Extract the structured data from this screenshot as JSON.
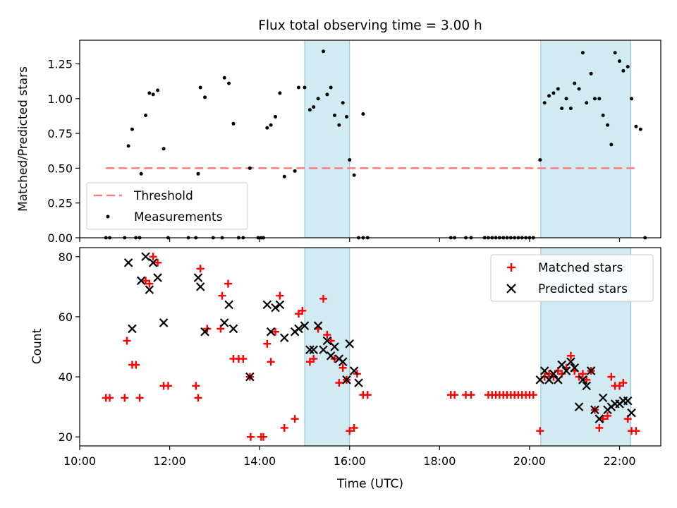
{
  "chart_data": [
    {
      "type": "scatter",
      "title": "Flux total observing time = 3.00 h",
      "xlabel": "",
      "ylabel": "Matched/Predicted stars",
      "xlim": [
        "10:00",
        "22:55"
      ],
      "ylim": [
        0,
        1.42
      ],
      "y_ticks": [
        0.0,
        0.25,
        0.5,
        0.75,
        1.0,
        1.25
      ],
      "y_tick_labels": [
        "0.00",
        "0.25",
        "0.50",
        "0.75",
        "1.00",
        "1.25"
      ],
      "shaded_intervals": [
        [
          "15:00",
          "16:00"
        ],
        [
          "20:15",
          "22:15"
        ]
      ],
      "threshold": {
        "name": "Threshold",
        "value": 0.5,
        "x_range": [
          "10:35",
          "22:20"
        ],
        "color": "#f87f7f"
      },
      "legend": {
        "placement": "lower-left",
        "entries": [
          "Threshold",
          "Measurements"
        ]
      },
      "series": [
        {
          "name": "Measurements",
          "color": "#000000",
          "points": [
            [
              "10:35",
              0
            ],
            [
              "10:40",
              0
            ],
            [
              "11:00",
              0
            ],
            [
              "11:05",
              0.66
            ],
            [
              "11:10",
              0.78
            ],
            [
              "11:15",
              0
            ],
            [
              "11:20",
              0
            ],
            [
              "11:22",
              0.46
            ],
            [
              "11:28",
              0.88
            ],
            [
              "11:33",
              1.04
            ],
            [
              "11:38",
              1.03
            ],
            [
              "11:44",
              1.06
            ],
            [
              "11:52",
              0.64
            ],
            [
              "11:58",
              0
            ],
            [
              "12:25",
              0
            ],
            [
              "12:35",
              0
            ],
            [
              "12:38",
              0.46
            ],
            [
              "12:41",
              1.08
            ],
            [
              "12:47",
              1.01
            ],
            [
              "12:58",
              0
            ],
            [
              "13:10",
              0
            ],
            [
              "13:13",
              1.15
            ],
            [
              "13:19",
              1.11
            ],
            [
              "13:25",
              0.82
            ],
            [
              "13:32",
              0
            ],
            [
              "13:38",
              0
            ],
            [
              "13:47",
              0.5
            ],
            [
              "13:58",
              0
            ],
            [
              "14:02",
              0
            ],
            [
              "14:05",
              0
            ],
            [
              "14:10",
              0.79
            ],
            [
              "14:15",
              0.81
            ],
            [
              "14:21",
              0.87
            ],
            [
              "14:27",
              1.04
            ],
            [
              "14:33",
              0.44
            ],
            [
              "14:47",
              0.48
            ],
            [
              "14:52",
              1.08
            ],
            [
              "15:00",
              1.08
            ],
            [
              "15:07",
              0.92
            ],
            [
              "15:12",
              0.94
            ],
            [
              "15:18",
              1.0
            ],
            [
              "15:25",
              1.34
            ],
            [
              "15:30",
              1.03
            ],
            [
              "15:35",
              1.08
            ],
            [
              "15:40",
              0.88
            ],
            [
              "15:46",
              0.81
            ],
            [
              "15:51",
              0.97
            ],
            [
              "15:56",
              0.87
            ],
            [
              "16:00",
              0.56
            ],
            [
              "16:06",
              0.45
            ],
            [
              "16:12",
              0
            ],
            [
              "16:18",
              0
            ],
            [
              "16:18",
              0.89
            ],
            [
              "16:24",
              0
            ],
            [
              "18:15",
              0
            ],
            [
              "18:20",
              0
            ],
            [
              "18:35",
              0
            ],
            [
              "18:42",
              0
            ],
            [
              "19:00",
              0
            ],
            [
              "19:05",
              0
            ],
            [
              "19:10",
              0
            ],
            [
              "19:15",
              0
            ],
            [
              "19:20",
              0
            ],
            [
              "19:25",
              0
            ],
            [
              "19:30",
              0
            ],
            [
              "19:35",
              0
            ],
            [
              "19:40",
              0
            ],
            [
              "19:45",
              0
            ],
            [
              "19:50",
              0
            ],
            [
              "19:55",
              0
            ],
            [
              "20:00",
              0
            ],
            [
              "20:05",
              0
            ],
            [
              "20:14",
              0.56
            ],
            [
              "20:20",
              0.97
            ],
            [
              "20:26",
              1.02
            ],
            [
              "20:32",
              1.04
            ],
            [
              "20:38",
              1.07
            ],
            [
              "20:43",
              0.93
            ],
            [
              "20:49",
              1.0
            ],
            [
              "20:55",
              0.93
            ],
            [
              "21:00",
              1.11
            ],
            [
              "21:06",
              1.07
            ],
            [
              "21:11",
              1.33
            ],
            [
              "21:16",
              0.97
            ],
            [
              "21:22",
              1.18
            ],
            [
              "21:27",
              1.0
            ],
            [
              "21:33",
              1.0
            ],
            [
              "21:38",
              0.88
            ],
            [
              "21:44",
              0.81
            ],
            [
              "21:49",
              0.67
            ],
            [
              "21:54",
              1.33
            ],
            [
              "22:00",
              1.27
            ],
            [
              "22:05",
              1.2
            ],
            [
              "22:11",
              1.23
            ],
            [
              "22:16",
              1.0
            ],
            [
              "22:22",
              0.8
            ],
            [
              "22:28",
              0.78
            ],
            [
              "22:34",
              0
            ]
          ]
        }
      ]
    },
    {
      "type": "scatter",
      "title": "",
      "xlabel": "Time (UTC)",
      "ylabel": "Count",
      "xlim": [
        "10:00",
        "22:55"
      ],
      "ylim": [
        17,
        83
      ],
      "x_ticks": [
        "10:00",
        "12:00",
        "14:00",
        "16:00",
        "18:00",
        "20:00",
        "22:00"
      ],
      "y_ticks": [
        20,
        40,
        60,
        80
      ],
      "shaded_intervals": [
        [
          "15:00",
          "16:00"
        ],
        [
          "20:15",
          "22:15"
        ]
      ],
      "legend": {
        "placement": "top-right",
        "entries": [
          "Matched stars",
          "Predicted stars"
        ]
      },
      "series": [
        {
          "name": "Matched stars",
          "marker": "plus",
          "color": "#ff0000",
          "points": [
            [
              "10:35",
              33
            ],
            [
              "10:40",
              33
            ],
            [
              "11:00",
              33
            ],
            [
              "11:03",
              52
            ],
            [
              "11:10",
              44
            ],
            [
              "11:15",
              44
            ],
            [
              "11:20",
              33
            ],
            [
              "11:28",
              72
            ],
            [
              "11:33",
              71
            ],
            [
              "11:38",
              80
            ],
            [
              "11:44",
              78
            ],
            [
              "11:52",
              37
            ],
            [
              "11:58",
              37
            ],
            [
              "12:35",
              37
            ],
            [
              "12:38",
              33
            ],
            [
              "12:41",
              76
            ],
            [
              "12:50",
              56
            ],
            [
              "13:08",
              56
            ],
            [
              "13:10",
              67
            ],
            [
              "13:18",
              71
            ],
            [
              "13:25",
              46
            ],
            [
              "13:32",
              46
            ],
            [
              "13:38",
              46
            ],
            [
              "13:47",
              40
            ],
            [
              "13:48",
              20
            ],
            [
              "14:02",
              20
            ],
            [
              "14:05",
              20
            ],
            [
              "14:10",
              51
            ],
            [
              "14:15",
              45
            ],
            [
              "14:21",
              55
            ],
            [
              "14:27",
              67
            ],
            [
              "14:33",
              23
            ],
            [
              "14:47",
              26
            ],
            [
              "14:52",
              61
            ],
            [
              "14:57",
              62
            ],
            [
              "15:07",
              45
            ],
            [
              "15:12",
              46
            ],
            [
              "15:18",
              56
            ],
            [
              "15:25",
              66
            ],
            [
              "15:30",
              54
            ],
            [
              "15:35",
              52
            ],
            [
              "15:40",
              46
            ],
            [
              "15:46",
              38
            ],
            [
              "15:51",
              43
            ],
            [
              "15:56",
              39
            ],
            [
              "16:00",
              22
            ],
            [
              "16:06",
              23
            ],
            [
              "16:10",
              41
            ],
            [
              "16:18",
              34
            ],
            [
              "16:24",
              34
            ],
            [
              "18:15",
              34
            ],
            [
              "18:20",
              34
            ],
            [
              "18:35",
              34
            ],
            [
              "18:42",
              34
            ],
            [
              "19:05",
              34
            ],
            [
              "19:10",
              34
            ],
            [
              "19:15",
              34
            ],
            [
              "19:20",
              34
            ],
            [
              "19:25",
              34
            ],
            [
              "19:30",
              34
            ],
            [
              "19:35",
              34
            ],
            [
              "19:40",
              34
            ],
            [
              "19:45",
              34
            ],
            [
              "19:50",
              34
            ],
            [
              "19:55",
              34
            ],
            [
              "20:00",
              34
            ],
            [
              "20:05",
              34
            ],
            [
              "20:14",
              22
            ],
            [
              "20:20",
              40
            ],
            [
              "20:26",
              41
            ],
            [
              "20:32",
              40
            ],
            [
              "20:38",
              42
            ],
            [
              "20:43",
              41
            ],
            [
              "20:49",
              43
            ],
            [
              "20:55",
              47
            ],
            [
              "21:00",
              42
            ],
            [
              "21:06",
              40
            ],
            [
              "21:11",
              41
            ],
            [
              "21:16",
              39
            ],
            [
              "21:22",
              42
            ],
            [
              "21:27",
              29
            ],
            [
              "21:33",
              23
            ],
            [
              "21:38",
              26
            ],
            [
              "21:44",
              27
            ],
            [
              "21:49",
              40
            ],
            [
              "21:54",
              37
            ],
            [
              "22:00",
              37
            ],
            [
              "22:05",
              38
            ],
            [
              "22:11",
              26
            ],
            [
              "22:16",
              22
            ],
            [
              "22:22",
              22
            ]
          ]
        },
        {
          "name": "Predicted stars",
          "marker": "x",
          "color": "#000000",
          "points": [
            [
              "11:05",
              78
            ],
            [
              "11:10",
              56
            ],
            [
              "11:22",
              72
            ],
            [
              "11:28",
              80
            ],
            [
              "11:33",
              69
            ],
            [
              "11:38",
              78
            ],
            [
              "11:44",
              73
            ],
            [
              "11:52",
              58
            ],
            [
              "12:38",
              73
            ],
            [
              "12:41",
              70
            ],
            [
              "12:47",
              55
            ],
            [
              "13:13",
              58
            ],
            [
              "13:19",
              64
            ],
            [
              "13:25",
              56
            ],
            [
              "13:47",
              40
            ],
            [
              "14:10",
              64
            ],
            [
              "14:15",
              55
            ],
            [
              "14:21",
              63
            ],
            [
              "14:27",
              64
            ],
            [
              "14:33",
              53
            ],
            [
              "14:47",
              55
            ],
            [
              "14:52",
              56
            ],
            [
              "15:00",
              57
            ],
            [
              "15:07",
              49
            ],
            [
              "15:12",
              49
            ],
            [
              "15:18",
              57
            ],
            [
              "15:25",
              49
            ],
            [
              "15:30",
              52
            ],
            [
              "15:35",
              47
            ],
            [
              "15:40",
              50
            ],
            [
              "15:46",
              46
            ],
            [
              "15:51",
              45
            ],
            [
              "15:56",
              39
            ],
            [
              "16:00",
              51
            ],
            [
              "16:06",
              42
            ],
            [
              "16:12",
              38
            ],
            [
              "20:14",
              39
            ],
            [
              "20:20",
              42
            ],
            [
              "20:26",
              39
            ],
            [
              "20:32",
              41
            ],
            [
              "20:38",
              39
            ],
            [
              "20:43",
              44
            ],
            [
              "20:49",
              42
            ],
            [
              "20:55",
              45
            ],
            [
              "21:00",
              43
            ],
            [
              "21:06",
              30
            ],
            [
              "21:11",
              39
            ],
            [
              "21:16",
              37
            ],
            [
              "21:22",
              42
            ],
            [
              "21:27",
              29
            ],
            [
              "21:33",
              26
            ],
            [
              "21:38",
              33
            ],
            [
              "21:44",
              29
            ],
            [
              "21:49",
              30
            ],
            [
              "21:54",
              31
            ],
            [
              "22:00",
              31
            ],
            [
              "22:05",
              32
            ],
            [
              "22:11",
              32
            ],
            [
              "22:16",
              28
            ]
          ]
        }
      ]
    }
  ]
}
